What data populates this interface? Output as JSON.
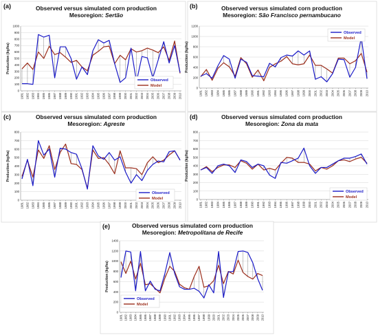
{
  "colors": {
    "observed": "#1a1ac8",
    "model": "#9b2d1b",
    "grid": "#d4d4d4"
  },
  "chart_data": [
    {
      "letter": "(a)",
      "type": "line",
      "title": "Observed versus simulated corn production",
      "subtitle_prefix": "Mesoregion: ",
      "subtitle_region": "Sertão",
      "ylabel": "Production (kg/ha)",
      "ylim": [
        0,
        1000
      ],
      "yticks": [
        0,
        100,
        200,
        300,
        400,
        500,
        600,
        700,
        800,
        900,
        1000
      ],
      "legend": "bottom-right",
      "grid": true,
      "x": [
        1981,
        1982,
        1983,
        1984,
        1985,
        1986,
        1987,
        1988,
        1989,
        1990,
        1991,
        1992,
        1993,
        1994,
        1995,
        1996,
        1997,
        1998,
        1999,
        2000,
        2001,
        2002,
        2003,
        2004,
        2005,
        2006,
        2007,
        2008,
        2009,
        2010
      ],
      "series": [
        {
          "name": "Observed",
          "values": [
            110,
            110,
            100,
            870,
            830,
            860,
            200,
            680,
            680,
            500,
            180,
            370,
            250,
            620,
            790,
            740,
            780,
            420,
            130,
            200,
            660,
            140,
            530,
            510,
            200,
            480,
            760,
            430,
            700,
            280
          ]
        },
        {
          "name": "Model",
          "values": [
            340,
            430,
            330,
            600,
            500,
            690,
            560,
            590,
            520,
            440,
            470,
            370,
            310,
            550,
            610,
            680,
            690,
            420,
            550,
            480,
            650,
            600,
            620,
            660,
            630,
            590,
            680,
            470,
            770,
            270
          ]
        }
      ]
    },
    {
      "letter": "(b)",
      "type": "line",
      "title": "Observed versus simulated corn production",
      "subtitle_prefix": "Mesoregion: ",
      "subtitle_region": "São Francisco pernambucano",
      "ylabel": "Production (kg/ha)",
      "ylim": [
        0,
        1200
      ],
      "yticks": [
        0,
        200,
        400,
        600,
        800,
        1000,
        1200
      ],
      "legend": "top-right",
      "grid": true,
      "x": [
        1981,
        1982,
        1983,
        1984,
        1985,
        1986,
        1987,
        1988,
        1989,
        1990,
        1991,
        1992,
        1993,
        1994,
        1995,
        1996,
        1997,
        1998,
        1999,
        2000,
        2001,
        2002,
        2003,
        2004,
        2005,
        2006,
        2007,
        2008,
        2009,
        2010
      ],
      "series": [
        {
          "name": "Observed",
          "values": [
            230,
            280,
            190,
            430,
            630,
            560,
            190,
            560,
            500,
            240,
            230,
            220,
            480,
            410,
            590,
            640,
            620,
            720,
            640,
            720,
            170,
            220,
            120,
            280,
            560,
            550,
            210,
            400,
            980,
            180
          ]
        },
        {
          "name": "Model",
          "values": [
            220,
            360,
            150,
            380,
            490,
            410,
            230,
            590,
            470,
            210,
            350,
            140,
            400,
            470,
            520,
            610,
            470,
            450,
            470,
            640,
            440,
            440,
            370,
            290,
            580,
            580,
            470,
            530,
            670,
            310
          ]
        }
      ]
    },
    {
      "letter": "(c)",
      "type": "line",
      "title": "Observed versus simulated corn production",
      "subtitle_prefix": "Mesoregion: ",
      "subtitle_region": "Agreste",
      "ylabel": "Production (kg/ha)",
      "ylim": [
        0,
        800
      ],
      "yticks": [
        0,
        100,
        200,
        300,
        400,
        500,
        600,
        700,
        800
      ],
      "legend": "bottom-right",
      "grid": true,
      "x": [
        1981,
        1982,
        1983,
        1984,
        1985,
        1986,
        1987,
        1988,
        1989,
        1990,
        1991,
        1992,
        1993,
        1994,
        1995,
        1996,
        1997,
        1998,
        1999,
        2000,
        2001,
        2002,
        2003,
        2004,
        2005,
        2006,
        2007,
        2008,
        2009,
        2010
      ],
      "series": [
        {
          "name": "Observed",
          "values": [
            250,
            480,
            170,
            700,
            530,
            600,
            270,
            610,
            600,
            560,
            540,
            370,
            130,
            640,
            520,
            480,
            560,
            470,
            510,
            330,
            200,
            300,
            230,
            350,
            420,
            460,
            450,
            570,
            580,
            470
          ]
        },
        {
          "name": "Model",
          "values": [
            280,
            470,
            270,
            590,
            490,
            640,
            360,
            560,
            660,
            430,
            420,
            360,
            140,
            590,
            490,
            500,
            420,
            310,
            580,
            380,
            380,
            370,
            300,
            440,
            510,
            440,
            470,
            530,
            580,
            470
          ]
        }
      ]
    },
    {
      "letter": "(d)",
      "type": "line",
      "title": "Observed versus simulated corn production",
      "subtitle_prefix": "Mesoregion: ",
      "subtitle_region": "Zona da mata",
      "ylabel": "Production (kg/ha)",
      "ylim": [
        0,
        800
      ],
      "yticks": [
        0,
        100,
        200,
        300,
        400,
        500,
        600,
        700,
        800
      ],
      "legend": "bottom-right",
      "grid": true,
      "x": [
        1981,
        1982,
        1983,
        1984,
        1985,
        1986,
        1987,
        1988,
        1989,
        1990,
        1991,
        1992,
        1993,
        1994,
        1995,
        1996,
        1997,
        1998,
        1999,
        2000,
        2001,
        2002,
        2003,
        2004,
        2005,
        2006,
        2007,
        2008,
        2009,
        2010
      ],
      "series": [
        {
          "name": "Observed",
          "values": [
            350,
            380,
            310,
            400,
            420,
            400,
            320,
            470,
            450,
            380,
            420,
            400,
            290,
            250,
            440,
            430,
            460,
            490,
            610,
            400,
            310,
            380,
            380,
            420,
            460,
            490,
            490,
            510,
            540,
            420
          ]
        },
        {
          "name": "Model",
          "values": [
            350,
            390,
            330,
            380,
            410,
            410,
            380,
            460,
            430,
            360,
            420,
            350,
            370,
            350,
            430,
            500,
            490,
            440,
            440,
            420,
            340,
            380,
            360,
            400,
            460,
            470,
            450,
            480,
            500,
            430
          ]
        }
      ]
    },
    {
      "letter": "(e)",
      "type": "line",
      "title": "Observed versus simulated corn production",
      "subtitle_prefix": "Mesoregion: ",
      "subtitle_region": "Metropolitana de Recife",
      "ylabel": "Production (kg/ha)",
      "ylim": [
        0,
        1400
      ],
      "yticks": [
        0,
        200,
        400,
        600,
        800,
        1000,
        1200,
        1400
      ],
      "legend": "bottom-left",
      "grid": true,
      "x": [
        1981,
        1982,
        1983,
        1984,
        1985,
        1986,
        1987,
        1988,
        1989,
        1990,
        1991,
        1992,
        1993,
        1994,
        1995,
        1996,
        1997,
        1998,
        1999,
        2000,
        2001,
        2002,
        2003,
        2004,
        2005,
        2006,
        2007,
        2008,
        2009,
        2010
      ],
      "series": [
        {
          "name": "Observed",
          "values": [
            680,
            1200,
            1180,
            420,
            1190,
            420,
            610,
            450,
            420,
            760,
            1170,
            760,
            500,
            450,
            450,
            470,
            410,
            280,
            540,
            380,
            1190,
            290,
            790,
            800,
            1190,
            1200,
            1170,
            970,
            660,
            430
          ]
        },
        {
          "name": "Model",
          "values": [
            990,
            760,
            1000,
            650,
            960,
            540,
            560,
            470,
            380,
            670,
            900,
            800,
            550,
            480,
            450,
            700,
            900,
            490,
            520,
            620,
            920,
            560,
            800,
            750,
            1020,
            780,
            700,
            650,
            760,
            720
          ]
        }
      ]
    }
  ]
}
